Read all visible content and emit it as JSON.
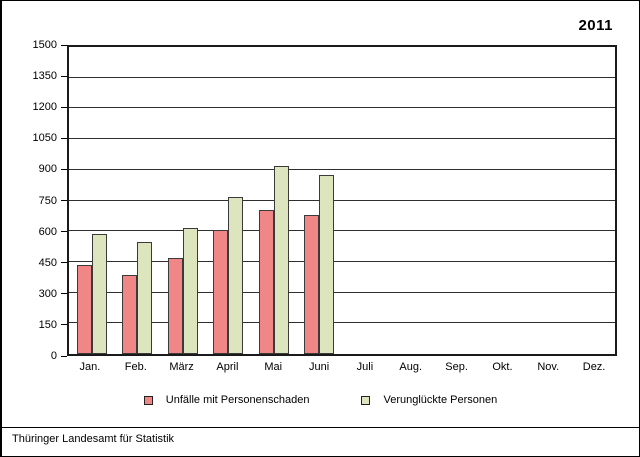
{
  "header": {
    "year": "2011"
  },
  "footer": {
    "source": "Thüringer Landesamt für Statistik"
  },
  "chart_data": {
    "type": "bar",
    "title": "2011",
    "categories": [
      "Jan.",
      "Feb.",
      "März",
      "April",
      "Mai",
      "Juni",
      "Juli",
      "Aug.",
      "Sep.",
      "Okt.",
      "Nov.",
      "Dez."
    ],
    "series": [
      {
        "name": "Unfälle mit Personenschaden",
        "color": "#f18686",
        "values": [
          435,
          385,
          470,
          605,
          705,
          680,
          null,
          null,
          null,
          null,
          null,
          null
        ]
      },
      {
        "name": "Verunglückte Personen",
        "color": "#dce5be",
        "values": [
          585,
          545,
          615,
          765,
          920,
          875,
          null,
          null,
          null,
          null,
          null,
          null
        ]
      }
    ],
    "xlabel": "",
    "ylabel": "",
    "ylim": [
      0,
      1500
    ],
    "ytick_step": 150,
    "grid": true,
    "legend_position": "bottom",
    "gridline_color": "#2f2f2f",
    "plot_border_color": "#1a1a1a"
  }
}
